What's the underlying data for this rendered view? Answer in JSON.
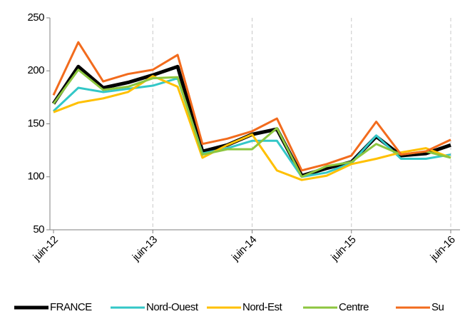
{
  "chart_data": {
    "type": "line",
    "categories": [
      "juin-12",
      null,
      null,
      null,
      "juin-13",
      null,
      null,
      null,
      "juin-14",
      null,
      null,
      null,
      "juin-15",
      null,
      null,
      null,
      "juin-16"
    ],
    "series": [
      {
        "name": "FRANCE",
        "color": "#000000",
        "values": [
          169,
          204,
          184,
          189,
          196,
          204,
          124,
          130,
          140,
          145,
          101,
          108,
          114,
          138,
          120,
          122,
          130
        ]
      },
      {
        "name": "Nord-Ouest",
        "color": "#33c7c7",
        "values": [
          162,
          184,
          180,
          183,
          186,
          193,
          122,
          127,
          134,
          134,
          100,
          104,
          113,
          139,
          117,
          117,
          121
        ]
      },
      {
        "name": "Nord-Est",
        "color": "#ffc000",
        "values": [
          161,
          170,
          174,
          180,
          195,
          185,
          118,
          130,
          140,
          106,
          97,
          101,
          112,
          117,
          123,
          127,
          118
        ]
      },
      {
        "name": "Centre",
        "color": "#8cc63f",
        "values": [
          169,
          201,
          182,
          185,
          193,
          194,
          121,
          126,
          126,
          146,
          100,
          110,
          114,
          131,
          121,
          124,
          118
        ]
      },
      {
        "name": "Su",
        "color": "#f26b1d",
        "values": [
          177,
          227,
          190,
          197,
          201,
          215,
          131,
          136,
          143,
          155,
          106,
          112,
          120,
          152,
          121,
          124,
          135
        ]
      }
    ],
    "ylim": [
      50,
      250
    ],
    "yticks": [
      50,
      100,
      150,
      200,
      250
    ],
    "grid": "x"
  }
}
